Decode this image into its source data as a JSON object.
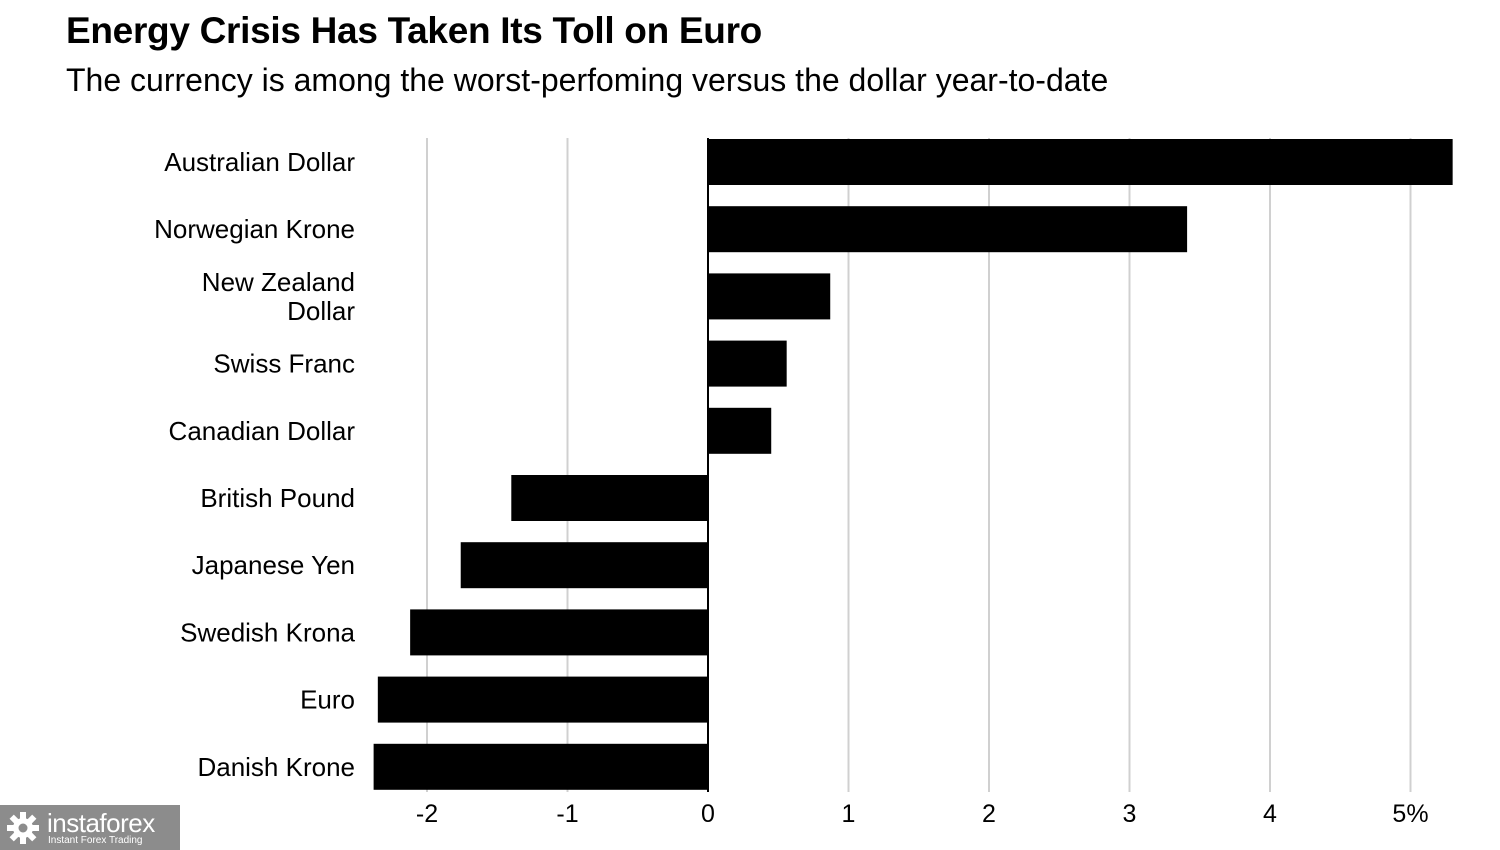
{
  "chart_data": {
    "type": "bar",
    "orientation": "horizontal",
    "title": "Energy Crisis Has Taken Its Toll on Euro",
    "subtitle": "The currency is among the worst-perfoming versus the dollar year-to-date",
    "categories": [
      "Australian Dollar",
      "Norwegian Krone",
      "New Zealand Dollar",
      "Swiss Franc",
      "Canadian Dollar",
      "British Pound",
      "Japanese Yen",
      "Swedish Krona",
      "Euro",
      "Danish Krone"
    ],
    "category_lines": [
      [
        "Australian Dollar"
      ],
      [
        "Norwegian Krone"
      ],
      [
        "New Zealand",
        "Dollar"
      ],
      [
        "Swiss Franc"
      ],
      [
        "Canadian Dollar"
      ],
      [
        "British Pound"
      ],
      [
        "Japanese Yen"
      ],
      [
        "Swedish Krona"
      ],
      [
        "Euro"
      ],
      [
        "Danish Krone"
      ]
    ],
    "values": [
      5.3,
      3.41,
      0.87,
      0.56,
      0.45,
      -1.4,
      -1.76,
      -2.12,
      -2.35,
      -2.38
    ],
    "xlim": [
      -2.5,
      5.5
    ],
    "xticks": [
      -2,
      -1,
      0,
      1,
      2,
      3,
      4,
      5
    ],
    "xtick_labels": [
      "-2",
      "-1",
      "0",
      "1",
      "2",
      "3",
      "4",
      "5%"
    ],
    "xlabel": "",
    "ylabel": "",
    "grid": true,
    "bar_color": "#000000",
    "grid_color": "#d0d0d0"
  },
  "watermark": {
    "brand": "instaforex",
    "tagline": "Instant Forex Trading",
    "icon": "gear-icon"
  }
}
